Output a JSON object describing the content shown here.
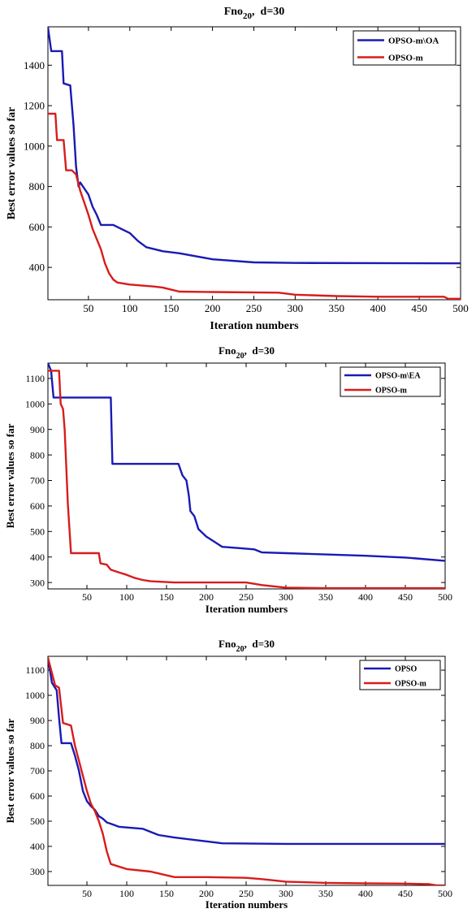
{
  "chart_data": [
    {
      "type": "line",
      "title": "Fno20,  d=30",
      "xlabel": "Iteration numbers",
      "ylabel": "Best error values so far",
      "xlim": [
        1,
        500
      ],
      "ylim": [
        240,
        1590
      ],
      "xticks": [
        50,
        100,
        150,
        200,
        250,
        300,
        350,
        400,
        450,
        500
      ],
      "yticks": [
        400,
        600,
        800,
        1000,
        1200,
        1400
      ],
      "legend_position": "top-right",
      "series": [
        {
          "name": "OPSO-m\\OA",
          "color": "#1a1ab4",
          "points": [
            [
              1,
              1590
            ],
            [
              5,
              1470
            ],
            [
              18,
              1470
            ],
            [
              20,
              1310
            ],
            [
              28,
              1300
            ],
            [
              32,
              1100
            ],
            [
              35,
              900
            ],
            [
              38,
              800
            ],
            [
              40,
              820
            ],
            [
              45,
              790
            ],
            [
              50,
              760
            ],
            [
              55,
              700
            ],
            [
              60,
              660
            ],
            [
              65,
              610
            ],
            [
              80,
              610
            ],
            [
              90,
              590
            ],
            [
              100,
              570
            ],
            [
              110,
              530
            ],
            [
              120,
              500
            ],
            [
              140,
              480
            ],
            [
              160,
              470
            ],
            [
              200,
              440
            ],
            [
              250,
              425
            ],
            [
              300,
              422
            ],
            [
              500,
              420
            ]
          ]
        },
        {
          "name": "OPSO-m",
          "color": "#d81c1c",
          "points": [
            [
              1,
              1160
            ],
            [
              10,
              1160
            ],
            [
              12,
              1030
            ],
            [
              20,
              1030
            ],
            [
              23,
              880
            ],
            [
              30,
              880
            ],
            [
              35,
              860
            ],
            [
              40,
              780
            ],
            [
              45,
              720
            ],
            [
              50,
              660
            ],
            [
              55,
              590
            ],
            [
              60,
              540
            ],
            [
              65,
              490
            ],
            [
              70,
              420
            ],
            [
              75,
              370
            ],
            [
              80,
              340
            ],
            [
              85,
              325
            ],
            [
              100,
              315
            ],
            [
              130,
              305
            ],
            [
              140,
              300
            ],
            [
              150,
              290
            ],
            [
              160,
              280
            ],
            [
              200,
              278
            ],
            [
              280,
              275
            ],
            [
              300,
              265
            ],
            [
              350,
              258
            ],
            [
              400,
              255
            ],
            [
              480,
              255
            ],
            [
              485,
              245
            ],
            [
              500,
              245
            ]
          ]
        }
      ]
    },
    {
      "type": "line",
      "title": "Fno20,  d=30",
      "xlabel": "Iteration numbers",
      "ylabel": "Best error values so far",
      "xlim": [
        1,
        500
      ],
      "ylim": [
        275,
        1160
      ],
      "xticks": [
        50,
        100,
        150,
        200,
        250,
        300,
        350,
        400,
        450,
        500
      ],
      "yticks": [
        300,
        400,
        500,
        600,
        700,
        800,
        900,
        1000,
        1100
      ],
      "legend_position": "top-right",
      "series": [
        {
          "name": "OPSO-m\\EA",
          "color": "#1a1ab4",
          "points": [
            [
              1,
              1160
            ],
            [
              5,
              1130
            ],
            [
              8,
              1025
            ],
            [
              80,
              1025
            ],
            [
              82,
              765
            ],
            [
              165,
              765
            ],
            [
              170,
              720
            ],
            [
              175,
              700
            ],
            [
              178,
              640
            ],
            [
              180,
              580
            ],
            [
              185,
              560
            ],
            [
              190,
              510
            ],
            [
              200,
              480
            ],
            [
              210,
              460
            ],
            [
              220,
              440
            ],
            [
              240,
              435
            ],
            [
              260,
              430
            ],
            [
              270,
              418
            ],
            [
              300,
              415
            ],
            [
              350,
              410
            ],
            [
              400,
              405
            ],
            [
              450,
              398
            ],
            [
              500,
              385
            ]
          ]
        },
        {
          "name": "OPSO-m",
          "color": "#d81c1c",
          "points": [
            [
              1,
              1130
            ],
            [
              15,
              1130
            ],
            [
              17,
              1000
            ],
            [
              20,
              980
            ],
            [
              22,
              900
            ],
            [
              24,
              760
            ],
            [
              26,
              610
            ],
            [
              28,
              510
            ],
            [
              30,
              415
            ],
            [
              65,
              415
            ],
            [
              67,
              375
            ],
            [
              75,
              370
            ],
            [
              80,
              350
            ],
            [
              90,
              340
            ],
            [
              100,
              330
            ],
            [
              110,
              318
            ],
            [
              120,
              310
            ],
            [
              130,
              305
            ],
            [
              160,
              300
            ],
            [
              250,
              300
            ],
            [
              270,
              290
            ],
            [
              300,
              280
            ],
            [
              350,
              278
            ],
            [
              500,
              278
            ]
          ]
        }
      ]
    },
    {
      "type": "line",
      "title": "Fno20,  d=30",
      "xlabel": "Iteration numbers",
      "ylabel": "Best error values so far",
      "xlim": [
        1,
        500
      ],
      "ylim": [
        245,
        1155
      ],
      "xticks": [
        50,
        100,
        150,
        200,
        250,
        300,
        350,
        400,
        450,
        500
      ],
      "yticks": [
        300,
        400,
        500,
        600,
        700,
        800,
        900,
        1000,
        1100
      ],
      "legend_position": "top-right",
      "series": [
        {
          "name": "OPSO",
          "color": "#1a1ab4",
          "points": [
            [
              1,
              1150
            ],
            [
              6,
              1050
            ],
            [
              12,
              1020
            ],
            [
              15,
              910
            ],
            [
              18,
              810
            ],
            [
              30,
              810
            ],
            [
              35,
              760
            ],
            [
              40,
              700
            ],
            [
              45,
              620
            ],
            [
              50,
              580
            ],
            [
              55,
              560
            ],
            [
              60,
              545
            ],
            [
              65,
              520
            ],
            [
              70,
              510
            ],
            [
              75,
              495
            ],
            [
              80,
              490
            ],
            [
              90,
              478
            ],
            [
              100,
              475
            ],
            [
              120,
              470
            ],
            [
              140,
              445
            ],
            [
              160,
              435
            ],
            [
              200,
              420
            ],
            [
              220,
              412
            ],
            [
              300,
              410
            ],
            [
              400,
              410
            ],
            [
              500,
              410
            ]
          ]
        },
        {
          "name": "OPSO-m",
          "color": "#d81c1c",
          "points": [
            [
              1,
              1150
            ],
            [
              10,
              1040
            ],
            [
              15,
              1030
            ],
            [
              20,
              890
            ],
            [
              30,
              880
            ],
            [
              35,
              800
            ],
            [
              40,
              740
            ],
            [
              45,
              680
            ],
            [
              50,
              620
            ],
            [
              55,
              570
            ],
            [
              60,
              540
            ],
            [
              65,
              500
            ],
            [
              70,
              450
            ],
            [
              75,
              380
            ],
            [
              80,
              330
            ],
            [
              90,
              320
            ],
            [
              100,
              310
            ],
            [
              130,
              300
            ],
            [
              150,
              285
            ],
            [
              160,
              278
            ],
            [
              200,
              278
            ],
            [
              250,
              275
            ],
            [
              270,
              270
            ],
            [
              300,
              260
            ],
            [
              350,
              255
            ],
            [
              400,
              253
            ],
            [
              450,
              252
            ],
            [
              480,
              250
            ],
            [
              490,
              245
            ],
            [
              500,
              245
            ]
          ]
        }
      ]
    }
  ]
}
